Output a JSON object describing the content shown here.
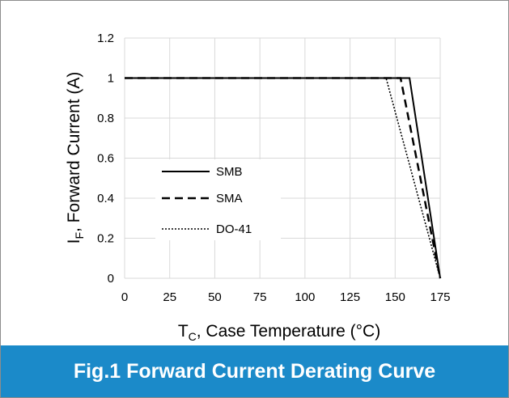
{
  "caption": "Fig.1 Forward Current Derating Curve",
  "colors": {
    "caption_bg": "#1b8ac9",
    "plot_line": "#000000",
    "grid": "#d9d9d9",
    "frame": "#8c8c8c"
  },
  "chart_data": {
    "type": "line",
    "title": "",
    "xlabel": {
      "main": "T",
      "sub": "C",
      "rest": ", Case Temperature  (°C)"
    },
    "ylabel": {
      "main": "I",
      "sub": "F",
      "rest": ", Forward Current (A)"
    },
    "xlim": [
      0,
      175
    ],
    "ylim": [
      0,
      1.2
    ],
    "x_ticks": [
      "0",
      "25",
      "50",
      "75",
      "100",
      "125",
      "150",
      "175"
    ],
    "y_ticks": [
      "0",
      "0.2",
      "0.4",
      "0.6",
      "0.8",
      "1",
      "1.2"
    ],
    "grid": true,
    "legend_position": "center-left",
    "series": [
      {
        "name": "SMB",
        "style": "solid",
        "x": [
          0,
          158,
          175
        ],
        "y": [
          1,
          1,
          0
        ]
      },
      {
        "name": "SMA",
        "style": "dashed",
        "x": [
          0,
          153,
          175
        ],
        "y": [
          1,
          1,
          0
        ]
      },
      {
        "name": "DO-41",
        "style": "dotted",
        "x": [
          0,
          145,
          175
        ],
        "y": [
          1,
          1,
          0
        ]
      }
    ]
  }
}
